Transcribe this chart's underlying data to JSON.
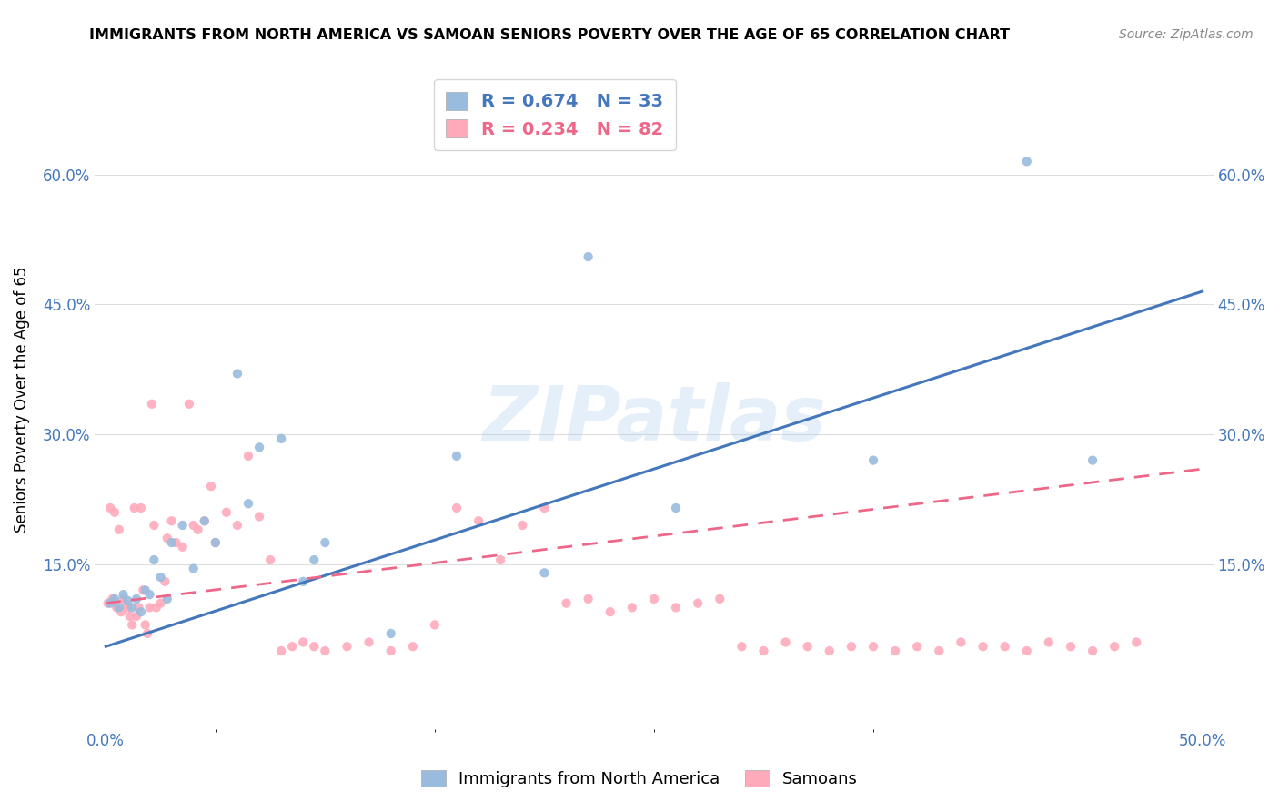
{
  "title": "IMMIGRANTS FROM NORTH AMERICA VS SAMOAN SENIORS POVERTY OVER THE AGE OF 65 CORRELATION CHART",
  "source": "Source: ZipAtlas.com",
  "ylabel": "Seniors Poverty Over the Age of 65",
  "xlabel": "",
  "legend1_label": "Immigrants from North America",
  "legend2_label": "Samoans",
  "R1": 0.674,
  "N1": 33,
  "R2": 0.234,
  "N2": 82,
  "xlim": [
    -0.005,
    0.505
  ],
  "ylim": [
    -0.04,
    0.72
  ],
  "xticks": [
    0.0,
    0.1,
    0.2,
    0.3,
    0.4,
    0.5
  ],
  "xtick_labels": [
    "0.0%",
    "",
    "",
    "",
    "",
    "50.0%"
  ],
  "yticks": [
    0.15,
    0.3,
    0.45,
    0.6
  ],
  "ytick_labels": [
    "15.0%",
    "30.0%",
    "45.0%",
    "60.0%"
  ],
  "color_blue": "#99BBDD",
  "color_pink": "#FFAABB",
  "color_blue_text": "#4477BB",
  "color_pink_text": "#EE6688",
  "watermark": "ZIPatlas",
  "blue_scatter_x": [
    0.002,
    0.004,
    0.006,
    0.008,
    0.01,
    0.012,
    0.014,
    0.016,
    0.018,
    0.02,
    0.022,
    0.025,
    0.028,
    0.03,
    0.035,
    0.04,
    0.045,
    0.05,
    0.06,
    0.065,
    0.07,
    0.08,
    0.09,
    0.095,
    0.1,
    0.13,
    0.16,
    0.2,
    0.22,
    0.26,
    0.35,
    0.42,
    0.45
  ],
  "blue_scatter_y": [
    0.105,
    0.11,
    0.1,
    0.115,
    0.108,
    0.1,
    0.11,
    0.095,
    0.12,
    0.115,
    0.155,
    0.135,
    0.11,
    0.175,
    0.195,
    0.145,
    0.2,
    0.175,
    0.37,
    0.22,
    0.285,
    0.295,
    0.13,
    0.155,
    0.175,
    0.07,
    0.275,
    0.14,
    0.505,
    0.215,
    0.27,
    0.615,
    0.27
  ],
  "pink_scatter_x": [
    0.001,
    0.002,
    0.003,
    0.004,
    0.005,
    0.006,
    0.007,
    0.008,
    0.009,
    0.01,
    0.011,
    0.012,
    0.013,
    0.014,
    0.015,
    0.016,
    0.017,
    0.018,
    0.019,
    0.02,
    0.021,
    0.022,
    0.023,
    0.025,
    0.027,
    0.028,
    0.03,
    0.032,
    0.035,
    0.038,
    0.04,
    0.042,
    0.045,
    0.048,
    0.05,
    0.055,
    0.06,
    0.065,
    0.07,
    0.075,
    0.08,
    0.085,
    0.09,
    0.095,
    0.1,
    0.11,
    0.12,
    0.13,
    0.14,
    0.15,
    0.16,
    0.17,
    0.18,
    0.19,
    0.2,
    0.21,
    0.22,
    0.23,
    0.24,
    0.25,
    0.26,
    0.27,
    0.28,
    0.29,
    0.3,
    0.31,
    0.32,
    0.33,
    0.34,
    0.35,
    0.36,
    0.37,
    0.38,
    0.39,
    0.4,
    0.41,
    0.42,
    0.43,
    0.44,
    0.45,
    0.46,
    0.47
  ],
  "pink_scatter_y": [
    0.105,
    0.215,
    0.11,
    0.21,
    0.1,
    0.19,
    0.095,
    0.11,
    0.105,
    0.1,
    0.09,
    0.08,
    0.215,
    0.09,
    0.1,
    0.215,
    0.12,
    0.08,
    0.07,
    0.1,
    0.335,
    0.195,
    0.1,
    0.105,
    0.13,
    0.18,
    0.2,
    0.175,
    0.17,
    0.335,
    0.195,
    0.19,
    0.2,
    0.24,
    0.175,
    0.21,
    0.195,
    0.275,
    0.205,
    0.155,
    0.05,
    0.055,
    0.06,
    0.055,
    0.05,
    0.055,
    0.06,
    0.05,
    0.055,
    0.08,
    0.215,
    0.2,
    0.155,
    0.195,
    0.215,
    0.105,
    0.11,
    0.095,
    0.1,
    0.11,
    0.1,
    0.105,
    0.11,
    0.055,
    0.05,
    0.06,
    0.055,
    0.05,
    0.055,
    0.055,
    0.05,
    0.055,
    0.05,
    0.06,
    0.055,
    0.055,
    0.05,
    0.06,
    0.055,
    0.05,
    0.055,
    0.06
  ],
  "blue_line_x": [
    0.0,
    0.5
  ],
  "blue_line_y_start": 0.055,
  "blue_line_y_end": 0.465,
  "pink_line_x": [
    0.0,
    0.5
  ],
  "pink_line_y_start": 0.105,
  "pink_line_y_end": 0.26
}
